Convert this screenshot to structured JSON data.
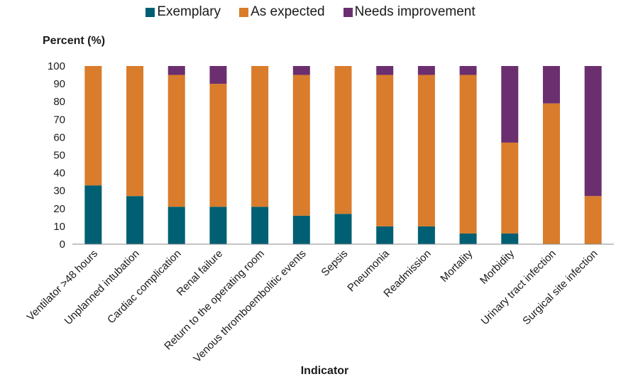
{
  "chart_data": {
    "type": "bar",
    "stacked": true,
    "xlabel": "Indicator",
    "ylabel": "Percent (%)",
    "ylim": [
      0,
      100
    ],
    "yticks": [
      0,
      10,
      20,
      30,
      40,
      50,
      60,
      70,
      80,
      90,
      100
    ],
    "grid": false,
    "legend_position": "top",
    "categories": [
      "Ventilator >48 hours",
      "Unplanned intubation",
      "Cardiac complication",
      "Renal failure",
      "Return to the operating room",
      "Venous thromboembolitic events",
      "Sepsis",
      "Pneumonia",
      "Readmission",
      "Mortality",
      "Morbidity",
      "Urinary tract infection",
      "Surgical site infection"
    ],
    "series": [
      {
        "name": "Exemplary",
        "color": "#005f73",
        "values": [
          33,
          27,
          21,
          21,
          21,
          16,
          17,
          10,
          10,
          6,
          6,
          0,
          0
        ]
      },
      {
        "name": "As expected",
        "color": "#d97c2b",
        "values": [
          67,
          73,
          74,
          69,
          79,
          79,
          83,
          85,
          85,
          89,
          51,
          79,
          27
        ]
      },
      {
        "name": "Needs improvement",
        "color": "#6b2f6f",
        "values": [
          0,
          0,
          5,
          10,
          0,
          5,
          0,
          5,
          5,
          5,
          43,
          21,
          73
        ]
      }
    ]
  }
}
